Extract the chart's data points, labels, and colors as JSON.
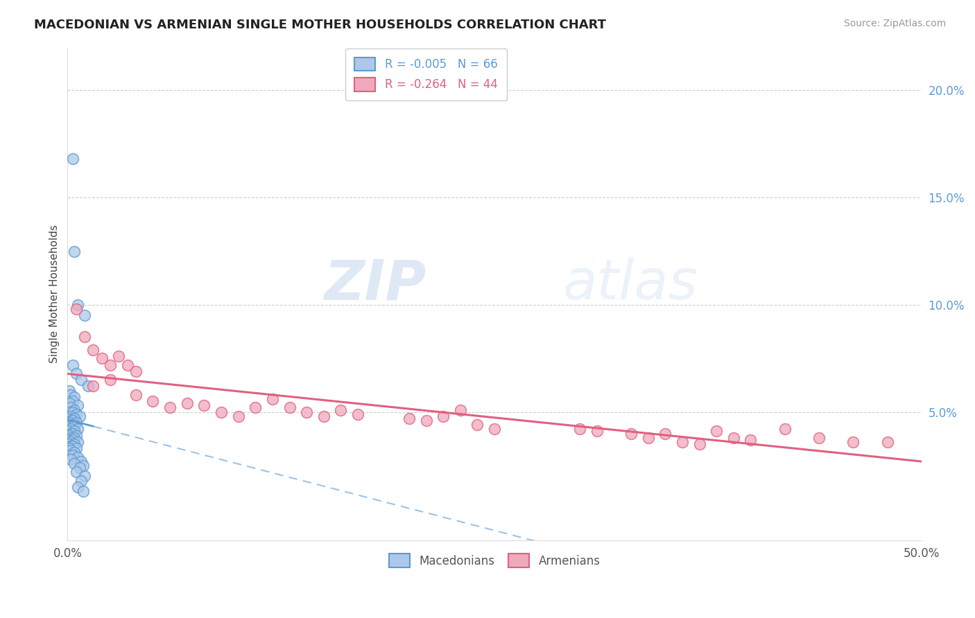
{
  "title": "MACEDONIAN VS ARMENIAN SINGLE MOTHER HOUSEHOLDS CORRELATION CHART",
  "source": "Source: ZipAtlas.com",
  "ylabel": "Single Mother Households",
  "R_macedonian": -0.005,
  "N_macedonian": 66,
  "R_armenian": -0.264,
  "N_armenian": 44,
  "color_macedonian_fill": "#adc8e8",
  "color_armenian_fill": "#f0a8bc",
  "color_macedonian_edge": "#5b9bd5",
  "color_armenian_edge": "#e06080",
  "color_macedonian_line": "#5b9bd5",
  "color_armenian_line": "#e06080",
  "xlim": [
    0.0,
    0.5
  ],
  "ylim": [
    -0.01,
    0.22
  ],
  "yticks": [
    0.05,
    0.1,
    0.15,
    0.2
  ],
  "ytick_labels": [
    "5.0%",
    "10.0%",
    "15.0%",
    "20.0%"
  ],
  "watermark_zip": "ZIP",
  "watermark_atlas": "atlas",
  "legend_macedonian": "Macedonians",
  "legend_armenian": "Armenians",
  "macedonian_points": [
    [
      0.003,
      0.168
    ],
    [
      0.004,
      0.125
    ],
    [
      0.006,
      0.1
    ],
    [
      0.01,
      0.095
    ],
    [
      0.003,
      0.072
    ],
    [
      0.005,
      0.068
    ],
    [
      0.008,
      0.065
    ],
    [
      0.012,
      0.062
    ],
    [
      0.001,
      0.06
    ],
    [
      0.002,
      0.058
    ],
    [
      0.004,
      0.057
    ],
    [
      0.003,
      0.055
    ],
    [
      0.001,
      0.054
    ],
    [
      0.006,
      0.053
    ],
    [
      0.002,
      0.052
    ],
    [
      0.004,
      0.051
    ],
    [
      0.001,
      0.05
    ],
    [
      0.003,
      0.05
    ],
    [
      0.005,
      0.049
    ],
    [
      0.002,
      0.048
    ],
    [
      0.007,
      0.048
    ],
    [
      0.001,
      0.047
    ],
    [
      0.004,
      0.047
    ],
    [
      0.002,
      0.046
    ],
    [
      0.003,
      0.046
    ],
    [
      0.001,
      0.045
    ],
    [
      0.005,
      0.045
    ],
    [
      0.002,
      0.044
    ],
    [
      0.004,
      0.044
    ],
    [
      0.001,
      0.043
    ],
    [
      0.003,
      0.043
    ],
    [
      0.006,
      0.042
    ],
    [
      0.002,
      0.042
    ],
    [
      0.001,
      0.041
    ],
    [
      0.004,
      0.041
    ],
    [
      0.002,
      0.04
    ],
    [
      0.003,
      0.04
    ],
    [
      0.001,
      0.039
    ],
    [
      0.005,
      0.039
    ],
    [
      0.002,
      0.038
    ],
    [
      0.004,
      0.038
    ],
    [
      0.001,
      0.037
    ],
    [
      0.003,
      0.037
    ],
    [
      0.002,
      0.036
    ],
    [
      0.006,
      0.036
    ],
    [
      0.001,
      0.035
    ],
    [
      0.004,
      0.035
    ],
    [
      0.002,
      0.034
    ],
    [
      0.003,
      0.034
    ],
    [
      0.001,
      0.033
    ],
    [
      0.005,
      0.033
    ],
    [
      0.002,
      0.032
    ],
    [
      0.004,
      0.031
    ],
    [
      0.001,
      0.03
    ],
    [
      0.003,
      0.03
    ],
    [
      0.006,
      0.029
    ],
    [
      0.002,
      0.028
    ],
    [
      0.008,
      0.027
    ],
    [
      0.004,
      0.026
    ],
    [
      0.009,
      0.025
    ],
    [
      0.007,
      0.024
    ],
    [
      0.005,
      0.022
    ],
    [
      0.01,
      0.02
    ],
    [
      0.008,
      0.018
    ],
    [
      0.006,
      0.015
    ],
    [
      0.009,
      0.013
    ]
  ],
  "armenian_points": [
    [
      0.005,
      0.098
    ],
    [
      0.01,
      0.085
    ],
    [
      0.015,
      0.079
    ],
    [
      0.02,
      0.075
    ],
    [
      0.025,
      0.072
    ],
    [
      0.03,
      0.076
    ],
    [
      0.035,
      0.072
    ],
    [
      0.04,
      0.069
    ],
    [
      0.025,
      0.065
    ],
    [
      0.015,
      0.062
    ],
    [
      0.04,
      0.058
    ],
    [
      0.05,
      0.055
    ],
    [
      0.06,
      0.052
    ],
    [
      0.07,
      0.054
    ],
    [
      0.08,
      0.053
    ],
    [
      0.09,
      0.05
    ],
    [
      0.1,
      0.048
    ],
    [
      0.11,
      0.052
    ],
    [
      0.12,
      0.056
    ],
    [
      0.13,
      0.052
    ],
    [
      0.14,
      0.05
    ],
    [
      0.15,
      0.048
    ],
    [
      0.16,
      0.051
    ],
    [
      0.17,
      0.049
    ],
    [
      0.2,
      0.047
    ],
    [
      0.21,
      0.046
    ],
    [
      0.22,
      0.048
    ],
    [
      0.23,
      0.051
    ],
    [
      0.24,
      0.044
    ],
    [
      0.25,
      0.042
    ],
    [
      0.3,
      0.042
    ],
    [
      0.31,
      0.041
    ],
    [
      0.33,
      0.04
    ],
    [
      0.34,
      0.038
    ],
    [
      0.35,
      0.04
    ],
    [
      0.36,
      0.036
    ],
    [
      0.37,
      0.035
    ],
    [
      0.38,
      0.041
    ],
    [
      0.39,
      0.038
    ],
    [
      0.4,
      0.037
    ],
    [
      0.42,
      0.042
    ],
    [
      0.44,
      0.038
    ],
    [
      0.46,
      0.036
    ],
    [
      0.48,
      0.036
    ]
  ]
}
